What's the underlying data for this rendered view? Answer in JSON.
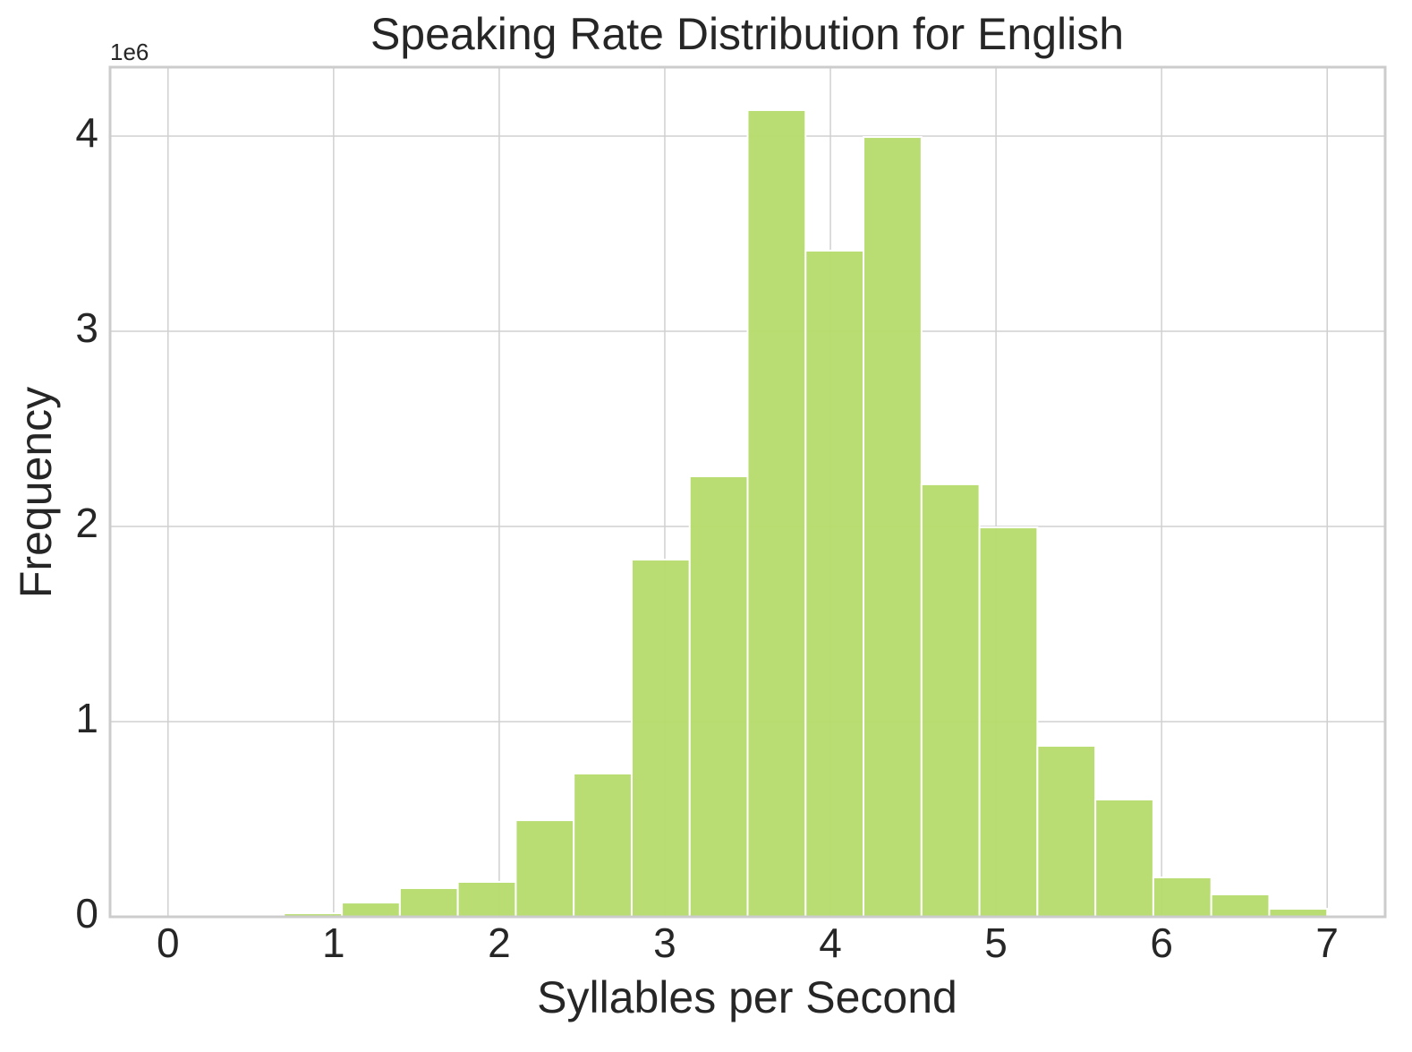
{
  "chart_data": {
    "type": "histogram",
    "title": "Speaking Rate Distribution for English",
    "xlabel": "Syllables per Second",
    "ylabel": "Frequency",
    "y_offset_text": "1e6",
    "bins": [
      0,
      0.35,
      0.7,
      1.05,
      1.4,
      1.75,
      2.1,
      2.45,
      2.8,
      3.15,
      3.5,
      3.85,
      4.2,
      4.55,
      4.9,
      5.25,
      5.6,
      5.95,
      6.3,
      6.65,
      7.0
    ],
    "counts": [
      0,
      0,
      18000,
      73000,
      147000,
      179000,
      495000,
      734000,
      1830000,
      2257000,
      4133000,
      3413000,
      3995000,
      2216000,
      1995000,
      876000,
      601000,
      202000,
      115000,
      41000
    ],
    "color": "#b5db6a",
    "xlim": [
      -0.35,
      7.35
    ],
    "xticks": [
      0,
      1,
      2,
      3,
      4,
      5,
      6,
      7
    ],
    "ylim": [
      0,
      4353000
    ],
    "yticks": [
      {
        "value": 0,
        "label": "0"
      },
      {
        "value": 1000000,
        "label": "1"
      },
      {
        "value": 2000000,
        "label": "2"
      },
      {
        "value": 3000000,
        "label": "3"
      },
      {
        "value": 4000000,
        "label": "4"
      }
    ],
    "grid": true
  }
}
